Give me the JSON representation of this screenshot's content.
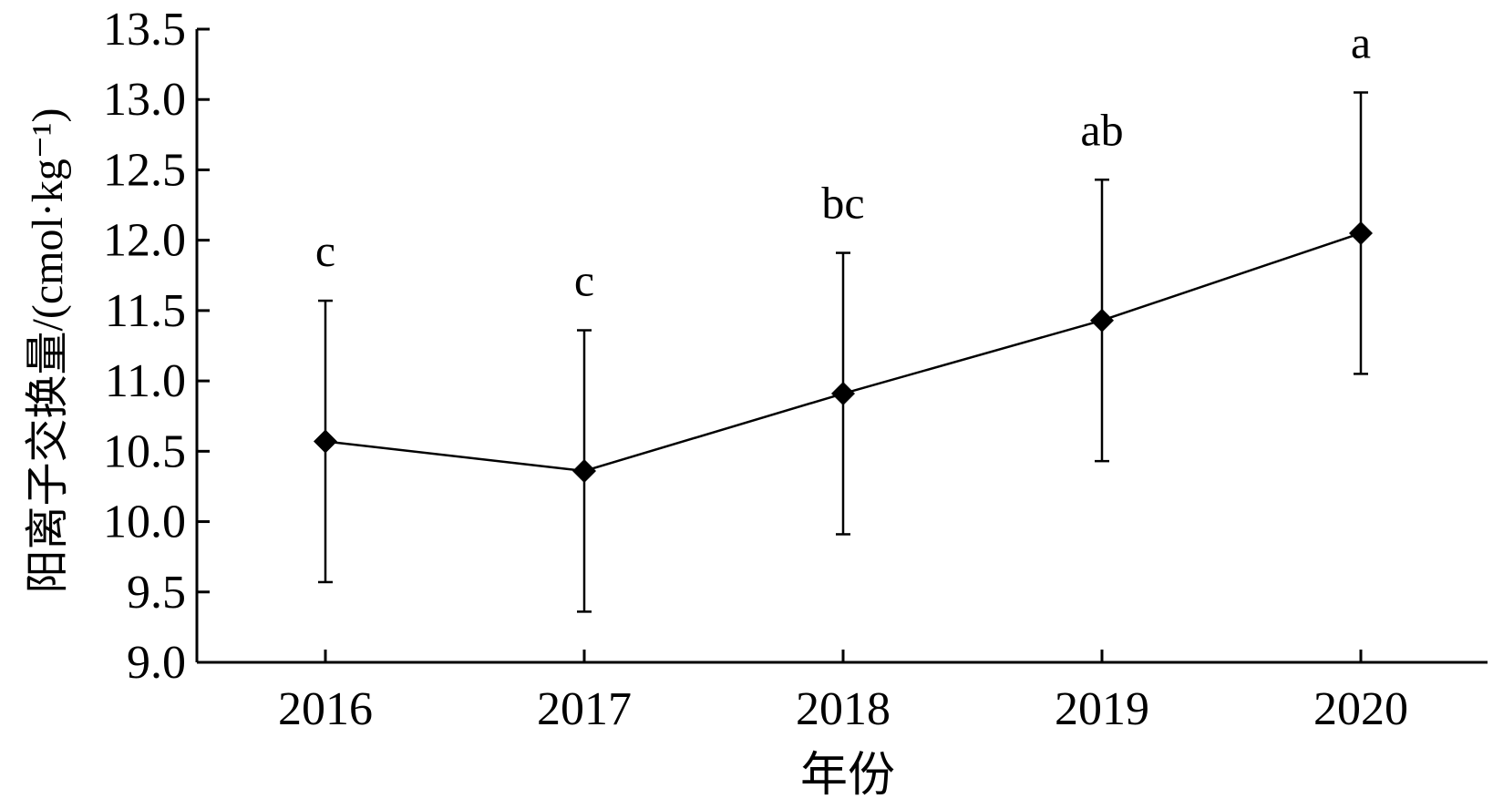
{
  "chart_data": {
    "type": "line",
    "title": "",
    "xlabel": "年份",
    "ylabel": "阳离子交换量/(cmol·kg⁻¹)",
    "categories": [
      "2016",
      "2017",
      "2018",
      "2019",
      "2020"
    ],
    "series": [
      {
        "values": [
          10.57,
          10.36,
          10.91,
          11.43,
          12.05
        ],
        "error": [
          1.0,
          1.0,
          1.0,
          1.0,
          1.0
        ],
        "labels": [
          "c",
          "c",
          "bc",
          "ab",
          "a"
        ],
        "marker": "diamond",
        "color": "#000000"
      }
    ],
    "ylim": [
      9.0,
      13.5
    ],
    "yticks": [
      "9.0",
      "9.5",
      "10.0",
      "10.5",
      "11.0",
      "11.5",
      "12.0",
      "12.5",
      "13.0",
      "13.5"
    ],
    "grid": false
  }
}
